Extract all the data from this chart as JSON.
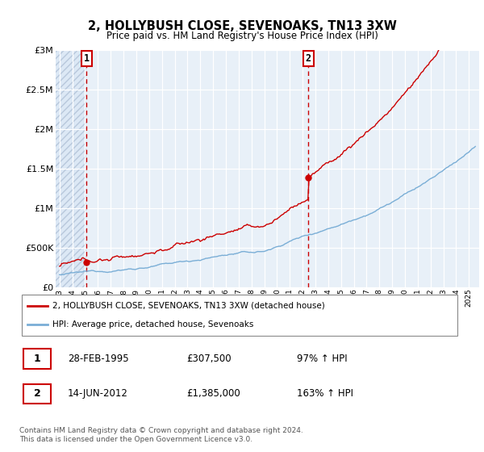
{
  "title": "2, HOLLYBUSH CLOSE, SEVENOAKS, TN13 3XW",
  "subtitle": "Price paid vs. HM Land Registry's House Price Index (HPI)",
  "ylabel_ticks": [
    "£0",
    "£500K",
    "£1M",
    "£1.5M",
    "£2M",
    "£2.5M",
    "£3M"
  ],
  "ytick_vals": [
    0,
    500000,
    1000000,
    1500000,
    2000000,
    2500000,
    3000000
  ],
  "ylim": [
    0,
    3000000
  ],
  "xlim_start": 1992.7,
  "xlim_end": 2025.8,
  "sale1_x": 1995.12,
  "sale1_y": 307500,
  "sale1_label": "1",
  "sale1_date": "28-FEB-1995",
  "sale1_price": "£307,500",
  "sale1_hpi": "97% ↑ HPI",
  "sale2_x": 2012.45,
  "sale2_y": 1385000,
  "sale2_label": "2",
  "sale2_date": "14-JUN-2012",
  "sale2_price": "£1,385,000",
  "sale2_hpi": "163% ↑ HPI",
  "hpi_color": "#7aaed6",
  "sale_color": "#cc0000",
  "vline_color": "#cc0000",
  "bg_hatch_color": "#dce8f5",
  "bg_plain_color": "#e8f0f8",
  "grid_color": "#c8d8ea",
  "legend1": "2, HOLLYBUSH CLOSE, SEVENOAKS, TN13 3XW (detached house)",
  "legend2": "HPI: Average price, detached house, Sevenoaks",
  "footnote": "Contains HM Land Registry data © Crown copyright and database right 2024.\nThis data is licensed under the Open Government Licence v3.0.",
  "xtick_years": [
    1993,
    1994,
    1995,
    1996,
    1997,
    1998,
    1999,
    2000,
    2001,
    2002,
    2003,
    2004,
    2005,
    2006,
    2007,
    2008,
    2009,
    2010,
    2011,
    2012,
    2013,
    2014,
    2015,
    2016,
    2017,
    2018,
    2019,
    2020,
    2021,
    2022,
    2023,
    2024,
    2025
  ]
}
